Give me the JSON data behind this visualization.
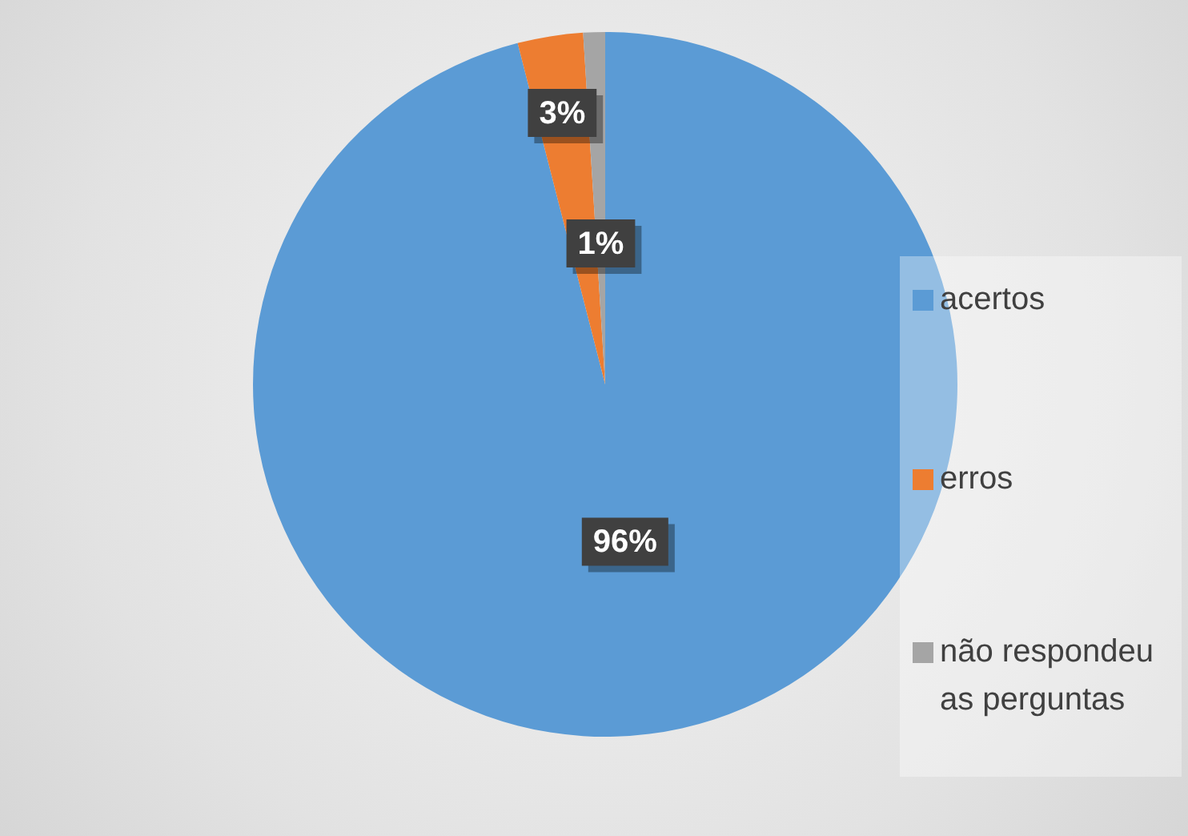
{
  "chart_data": {
    "type": "pie",
    "categories": [
      "acertos",
      "erros",
      "não respondeu as perguntas"
    ],
    "values": [
      96,
      3,
      1
    ],
    "colors": [
      "#5b9bd5",
      "#ed7d31",
      "#a5a5a5"
    ],
    "value_labels": [
      "96%",
      "3%",
      "1%"
    ],
    "legend": "right"
  }
}
